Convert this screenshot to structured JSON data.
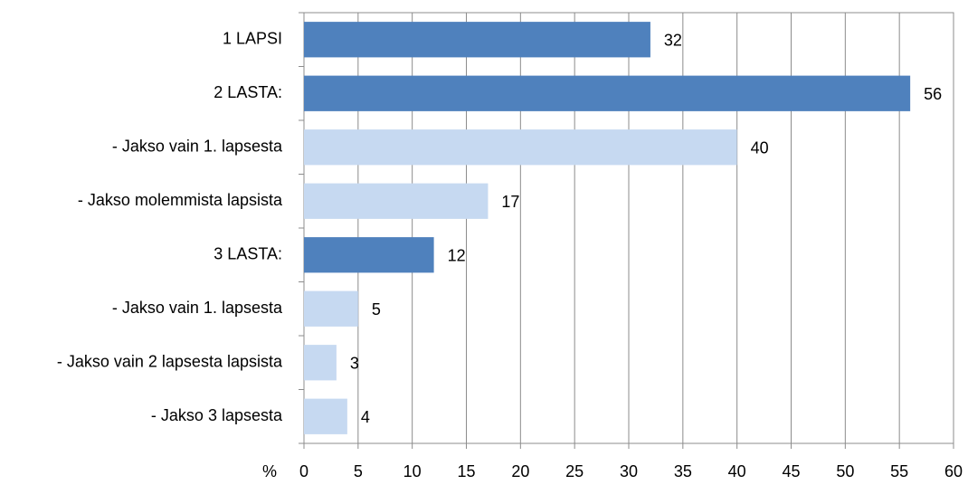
{
  "chart_data": {
    "type": "bar",
    "orientation": "horizontal",
    "x_label": "%",
    "categories": [
      "1 LAPSI",
      "2 LASTA:",
      "- Jakso vain 1. lapsesta",
      "- Jakso molemmista lapsista",
      "3 LASTA:",
      "- Jakso vain 1. lapsesta",
      "- Jakso vain 2 lapsesta lapsista",
      "- Jakso 3 lapsesta"
    ],
    "values": [
      32,
      56,
      40,
      17,
      12,
      5,
      3,
      4
    ],
    "colors": [
      "#4f81bd",
      "#4f81bd",
      "#c6d9f1",
      "#c6d9f1",
      "#4f81bd",
      "#c6d9f1",
      "#c6d9f1",
      "#c6d9f1"
    ],
    "xlim": [
      0,
      60
    ],
    "xticks": [
      0,
      5,
      10,
      15,
      20,
      25,
      30,
      35,
      40,
      45,
      50,
      55,
      60
    ],
    "grid": true
  }
}
